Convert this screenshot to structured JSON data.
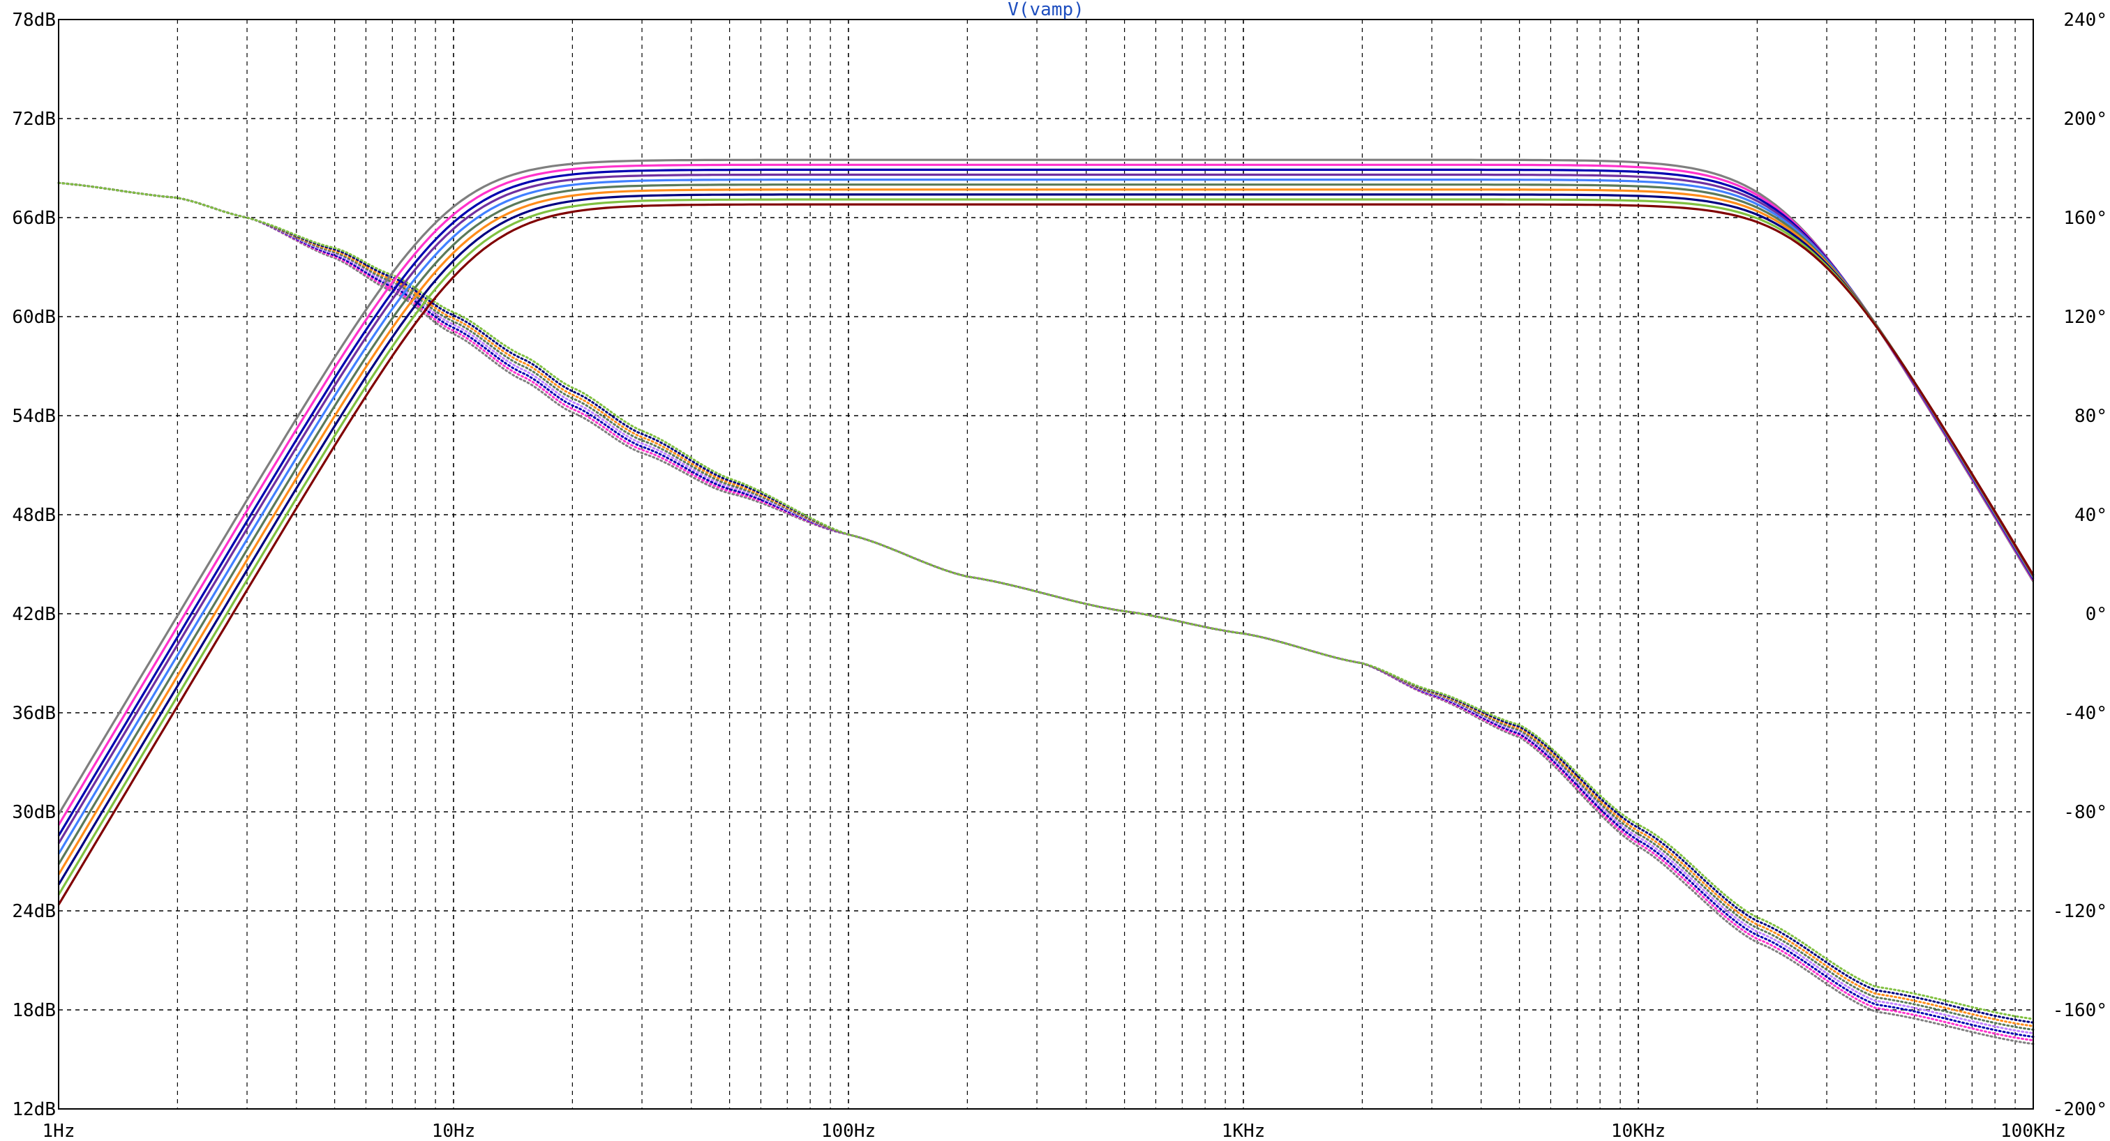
{
  "chart_data": {
    "type": "line",
    "title": "V(vamp)",
    "title_color": "#1f4fbf",
    "x_scale": "log",
    "xlim": [
      1,
      100000
    ],
    "x_tick_values": [
      1,
      10,
      100,
      1000,
      10000,
      100000
    ],
    "x_tick_labels": [
      "1Hz",
      "10Hz",
      "100Hz",
      "1KHz",
      "10KHz",
      "100KHz"
    ],
    "y_left": {
      "unit": "dB",
      "ylim": [
        12,
        78
      ],
      "tick_values": [
        12,
        18,
        24,
        30,
        36,
        42,
        48,
        54,
        60,
        66,
        72,
        78
      ],
      "tick_labels": [
        "12dB",
        "18dB",
        "24dB",
        "30dB",
        "36dB",
        "42dB",
        "48dB",
        "54dB",
        "60dB",
        "66dB",
        "72dB",
        "78dB"
      ]
    },
    "y_right": {
      "unit": "degrees",
      "ylim": [
        -200,
        240
      ],
      "tick_values": [
        -200,
        -160,
        -120,
        -80,
        -40,
        0,
        40,
        80,
        120,
        160,
        200,
        240
      ],
      "tick_labels": [
        "-200°",
        "-160°",
        "-120°",
        "-80°",
        "-40°",
        "0°",
        "40°",
        "80°",
        "120°",
        "160°",
        "200°",
        "240°"
      ]
    },
    "grid": true,
    "grid_style": "dashed",
    "legend": "none",
    "magnitude_style": "solid",
    "phase_style": "dotted",
    "magnitude_runs": [
      {
        "color": "#7f7f7f",
        "gain_db": 69.5,
        "f_low_hz": 9.8,
        "f_high_hz": 23000
      },
      {
        "color": "#ff33cc",
        "gain_db": 69.2,
        "f_low_hz": 10.0,
        "f_high_hz": 23500
      },
      {
        "color": "#0000b0",
        "gain_db": 68.9,
        "f_low_hz": 10.2,
        "f_high_hz": 24000
      },
      {
        "color": "#7030a0",
        "gain_db": 68.6,
        "f_low_hz": 10.3,
        "f_high_hz": 24500
      },
      {
        "color": "#4080ff",
        "gain_db": 68.3,
        "f_low_hz": 10.5,
        "f_high_hz": 25000
      },
      {
        "color": "#5a7a5a",
        "gain_db": 68.0,
        "f_low_hz": 10.7,
        "f_high_hz": 25500
      },
      {
        "color": "#ff8c1a",
        "gain_db": 67.7,
        "f_low_hz": 10.9,
        "f_high_hz": 26000
      },
      {
        "color": "#000080",
        "gain_db": 67.4,
        "f_low_hz": 11.1,
        "f_high_hz": 26500
      },
      {
        "color": "#80c040",
        "gain_db": 67.1,
        "f_low_hz": 11.3,
        "f_high_hz": 27000
      },
      {
        "color": "#800000",
        "gain_db": 66.8,
        "f_low_hz": 11.5,
        "f_high_hz": 27500
      }
    ],
    "phase_samples": [
      {
        "x": 1,
        "deg": 174
      },
      {
        "x": 2,
        "deg": 168
      },
      {
        "x": 3,
        "deg": 160
      },
      {
        "x": 5,
        "deg": 146
      },
      {
        "x": 7,
        "deg": 134
      },
      {
        "x": 10,
        "deg": 118
      },
      {
        "x": 15,
        "deg": 100
      },
      {
        "x": 20,
        "deg": 87
      },
      {
        "x": 30,
        "deg": 70
      },
      {
        "x": 50,
        "deg": 52
      },
      {
        "x": 100,
        "deg": 32
      },
      {
        "x": 200,
        "deg": 15
      },
      {
        "x": 500,
        "deg": 1
      },
      {
        "x": 1000,
        "deg": -8
      },
      {
        "x": 2000,
        "deg": -20
      },
      {
        "x": 3000,
        "deg": -32
      },
      {
        "x": 5000,
        "deg": -47
      },
      {
        "x": 10000,
        "deg": -89
      },
      {
        "x": 20000,
        "deg": -127
      },
      {
        "x": 40000,
        "deg": -155
      },
      {
        "x": 100000,
        "deg": -168
      }
    ],
    "phase_colors": [
      "#7f7f7f",
      "#ff33cc",
      "#0000b0",
      "#c080ff",
      "#5a7a5a",
      "#ff8c1a",
      "#000080",
      "#80c040"
    ]
  }
}
